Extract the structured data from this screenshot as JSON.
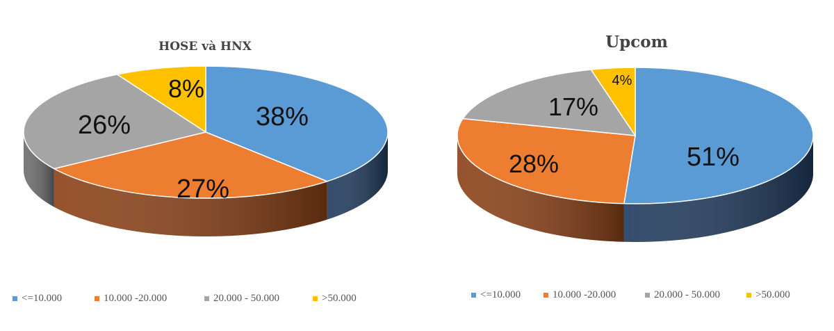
{
  "colors": {
    "blue": "#5b9bd5",
    "blue_side": "#1f3a5c",
    "orange": "#ed7d31",
    "orange_side": "#8a4016",
    "gray": "#a5a5a5",
    "gray_side": "#6b6b6b",
    "yellow": "#ffc000",
    "yellow_side": "#a07800"
  },
  "chart_data": [
    {
      "type": "pie",
      "title": "HOSE và HNX",
      "legend_position": "bottom",
      "categories": [
        "<=10.000",
        "10.000 -20.000",
        "20.000 - 50.000",
        ">50.000"
      ],
      "values": [
        38,
        27,
        26,
        8
      ],
      "labels": [
        "38%",
        "27%",
        "26%",
        "8%"
      ]
    },
    {
      "type": "pie",
      "title": "Upcom",
      "legend_position": "bottom",
      "categories": [
        "<=10.000",
        "10.000 -20.000",
        "20.000 - 50.000",
        ">50.000"
      ],
      "values": [
        51,
        28,
        17,
        4
      ],
      "labels": [
        "51%",
        "28%",
        "17%",
        "4%"
      ]
    }
  ]
}
